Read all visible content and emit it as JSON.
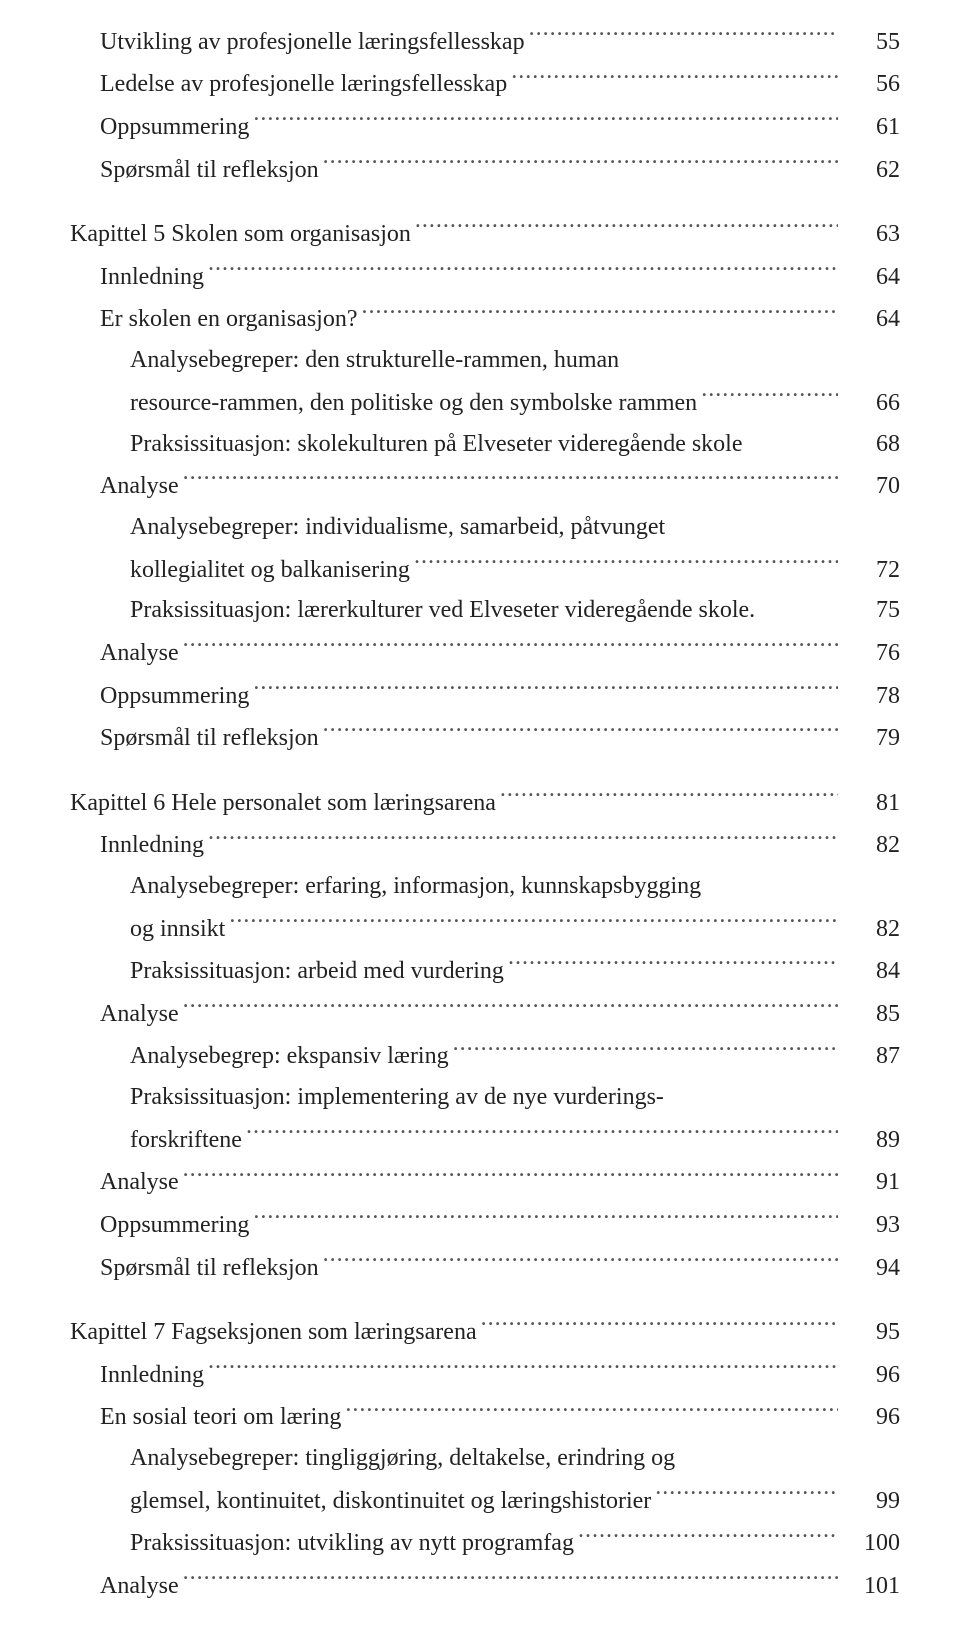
{
  "text_color": "#222222",
  "background_color": "#ffffff",
  "font_family": "Georgia, 'Times New Roman', serif",
  "font_size_pt": 18,
  "entries": [
    {
      "indent": 1,
      "label": "Utvikling av profesjonelle læringsfellesskap",
      "page": "55"
    },
    {
      "indent": 1,
      "label": "Ledelse av profesjonelle læringsfellesskap",
      "page": "56"
    },
    {
      "indent": 1,
      "label": "Oppsummering",
      "page": "61"
    },
    {
      "indent": 1,
      "label": "Spørsmål til refleksjon",
      "page": "62"
    },
    {
      "gap": true
    },
    {
      "indent": 0,
      "label": "Kapittel 5 Skolen som organisasjon",
      "page": "63"
    },
    {
      "indent": 1,
      "label": "Innledning",
      "page": "64"
    },
    {
      "indent": 1,
      "label": "Er skolen en organisasjon?",
      "page": "64"
    },
    {
      "indent": 2,
      "label_lines": [
        "Analysebegreper: den strukturelle-rammen, human",
        "resource-rammen, den politiske og den symbolske rammen"
      ],
      "page": "66"
    },
    {
      "indent": 2,
      "label": "Praksissituasjon: skolekulturen på Elveseter videregående skole",
      "page": "68",
      "no_dots": true
    },
    {
      "indent": 1,
      "label": "Analyse",
      "page": "70"
    },
    {
      "indent": 2,
      "label_lines": [
        "Analysebegreper: individualisme, samarbeid, påtvunget",
        "kollegialitet og balkanisering"
      ],
      "page": "72"
    },
    {
      "indent": 2,
      "label": "Praksissituasjon: lærerkulturer ved Elveseter videregående skole.",
      "page": "75",
      "no_dots": true
    },
    {
      "indent": 1,
      "label": "Analyse",
      "page": "76"
    },
    {
      "indent": 1,
      "label": "Oppsummering",
      "page": "78"
    },
    {
      "indent": 1,
      "label": "Spørsmål til refleksjon",
      "page": "79"
    },
    {
      "gap": true
    },
    {
      "indent": 0,
      "label": "Kapittel 6 Hele personalet som læringsarena",
      "page": "81"
    },
    {
      "indent": 1,
      "label": "Innledning",
      "page": "82"
    },
    {
      "indent": 2,
      "label_lines": [
        "Analysebegreper: erfaring, informasjon, kunnskapsbygging",
        "og innsikt"
      ],
      "page": "82"
    },
    {
      "indent": 2,
      "label": "Praksissituasjon: arbeid med vurdering",
      "page": "84"
    },
    {
      "indent": 1,
      "label": "Analyse",
      "page": "85"
    },
    {
      "indent": 2,
      "label": "Analysebegrep: ekspansiv læring",
      "page": "87"
    },
    {
      "indent": 2,
      "label_lines": [
        "Praksissituasjon: implementering av de nye vurderings-",
        "forskriftene"
      ],
      "page": "89"
    },
    {
      "indent": 1,
      "label": "Analyse",
      "page": "91"
    },
    {
      "indent": 1,
      "label": "Oppsummering",
      "page": "93"
    },
    {
      "indent": 1,
      "label": "Spørsmål til refleksjon",
      "page": "94"
    },
    {
      "gap": true
    },
    {
      "indent": 0,
      "label": "Kapittel 7 Fagseksjonen som læringsarena",
      "page": "95"
    },
    {
      "indent": 1,
      "label": "Innledning",
      "page": "96"
    },
    {
      "indent": 1,
      "label": "En sosial teori om læring",
      "page": "96"
    },
    {
      "indent": 2,
      "label_lines": [
        "Analysebegreper: tingliggjøring, deltakelse, erindring og",
        "glemsel, kontinuitet, diskontinuitet og læringshistorier"
      ],
      "page": "99"
    },
    {
      "indent": 2,
      "label": "Praksissituasjon: utvikling av nytt programfag",
      "page": "100"
    },
    {
      "indent": 1,
      "label": "Analyse",
      "page": "101"
    }
  ]
}
